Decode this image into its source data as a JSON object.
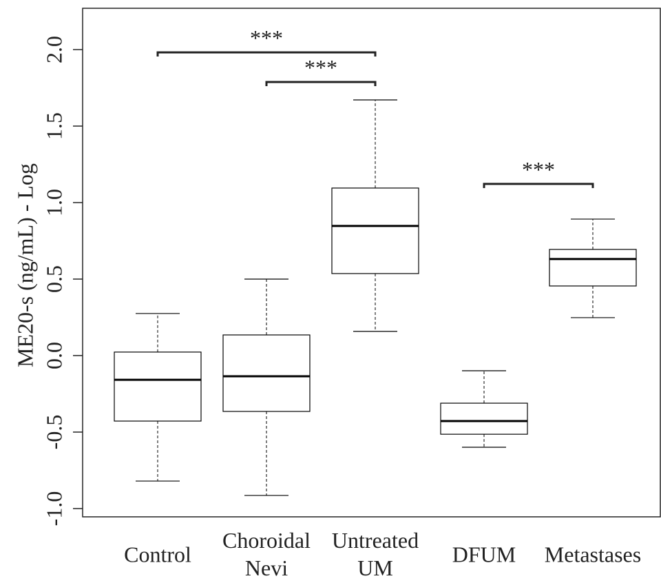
{
  "chart_data": {
    "type": "box",
    "y_label": "ME20-s (ng/mL) - Log",
    "categories": [
      "Control",
      "Choroidal\nNevi",
      "Untreated\nUM",
      "DFUM",
      "Metastases"
    ],
    "boxes": [
      {
        "whisker_low": -0.82,
        "q1": -0.428,
        "median": -0.158,
        "q3": 0.023,
        "whisker_high": 0.275
      },
      {
        "whisker_low": -0.914,
        "q1": -0.365,
        "median": -0.135,
        "q3": 0.135,
        "whisker_high": 0.5
      },
      {
        "whisker_low": 0.158,
        "q1": 0.536,
        "median": 0.847,
        "q3": 1.095,
        "whisker_high": 1.671
      },
      {
        "whisker_low": -0.599,
        "q1": -0.514,
        "median": -0.428,
        "q3": -0.311,
        "whisker_high": -0.099
      },
      {
        "whisker_low": 0.248,
        "q1": 0.455,
        "median": 0.631,
        "q3": 0.694,
        "whisker_high": 0.892
      }
    ],
    "color": "#000000",
    "ylim": [
      -1.054,
      2.27
    ],
    "yticks": [
      {
        "value": -1,
        "label": "-1.0"
      },
      {
        "value": -0.5,
        "label": "-0.5"
      },
      {
        "value": 0,
        "label": "0.0"
      },
      {
        "value": 0.5,
        "label": "0.5"
      },
      {
        "value": 1,
        "label": "1.0"
      },
      {
        "value": 1.5,
        "label": "1.5"
      },
      {
        "value": 2,
        "label": "2.0"
      }
    ],
    "annotations": [
      {
        "text": "***",
        "between": [
          0,
          2
        ],
        "y": 1.982
      },
      {
        "text": "***",
        "between": [
          1,
          2
        ],
        "y": 1.788
      },
      {
        "text": "***",
        "between": [
          3,
          4
        ],
        "y": 1.122
      }
    ]
  }
}
